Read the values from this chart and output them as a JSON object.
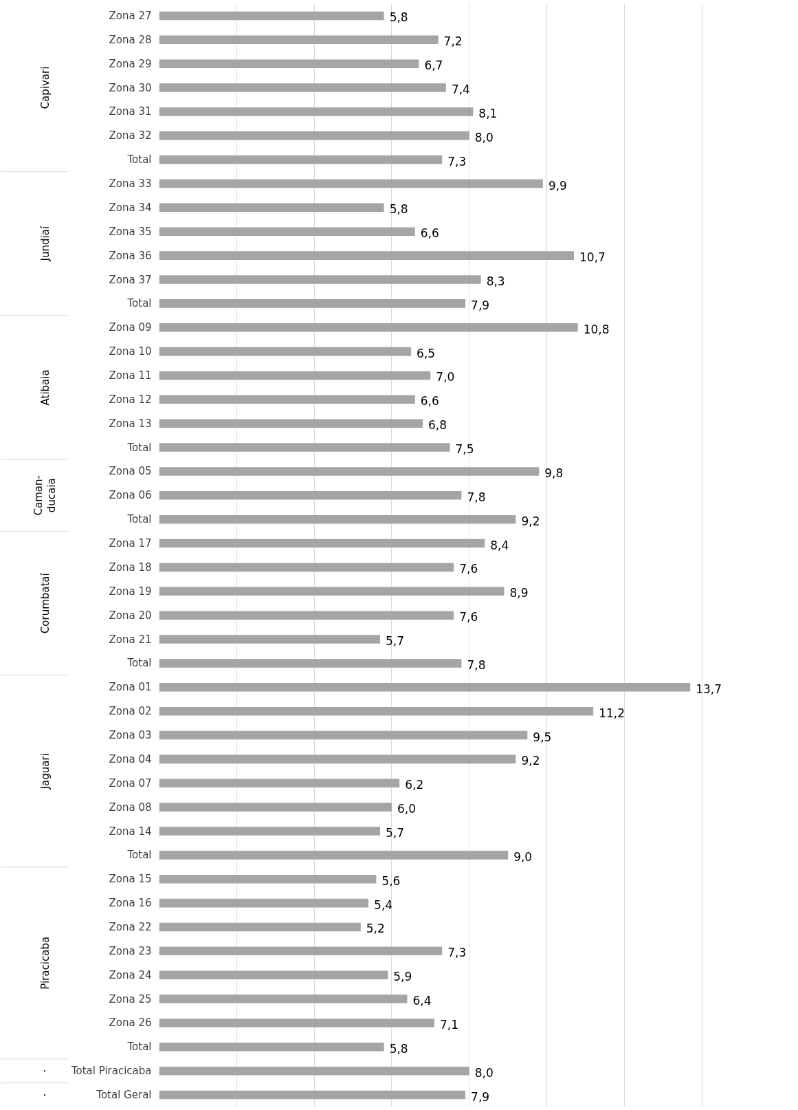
{
  "chart_data": {
    "type": "bar",
    "orientation": "horizontal",
    "categories": [
      "Zona 27",
      "Zona 28",
      "Zona 29",
      "Zona 30",
      "Zona 31",
      "Zona 32",
      "Total",
      "Zona 33",
      "Zona 34",
      "Zona 35",
      "Zona 36",
      "Zona 37",
      "Total",
      "Zona 09",
      "Zona 10",
      "Zona 11",
      "Zona 12",
      "Zona 13",
      "Total",
      "Zona 05",
      "Zona 06",
      "Total",
      "Zona 17",
      "Zona 18",
      "Zona 19",
      "Zona 20",
      "Zona 21",
      "Total",
      "Zona 01",
      "Zona 02",
      "Zona 03",
      "Zona 04",
      "Zona 07",
      "Zona 08",
      "Zona 14",
      "Total",
      "Zona 15",
      "Zona 16",
      "Zona 22",
      "Zona 23",
      "Zona 24",
      "Zona 25",
      "Zona 26",
      "Total",
      "Total Piracicaba",
      "Total Geral"
    ],
    "values": [
      5.8,
      7.2,
      6.7,
      7.4,
      8.1,
      8.0,
      7.3,
      9.9,
      5.8,
      6.6,
      10.7,
      8.3,
      7.9,
      10.8,
      6.5,
      7.0,
      6.6,
      6.8,
      7.5,
      9.8,
      7.8,
      9.2,
      8.4,
      7.6,
      8.9,
      7.6,
      5.7,
      7.8,
      13.7,
      11.2,
      9.5,
      9.2,
      6.2,
      6.0,
      5.7,
      9.0,
      5.6,
      5.4,
      5.2,
      7.3,
      5.9,
      6.4,
      7.1,
      5.8,
      8.0,
      7.9
    ],
    "value_labels": [
      "5,8",
      "7,2",
      "6,7",
      "7,4",
      "8,1",
      "8,0",
      "7,3",
      "9,9",
      "5,8",
      "6,6",
      "10,7",
      "8,3",
      "7,9",
      "10,8",
      "6,5",
      "7,0",
      "6,6",
      "6,8",
      "7,5",
      "9,8",
      "7,8",
      "9,2",
      "8,4",
      "7,6",
      "8,9",
      "7,6",
      "5,7",
      "7,8",
      "13,7",
      "11,2",
      "9,5",
      "9,2",
      "6,2",
      "6,0",
      "5,7",
      "9,0",
      "5,6",
      "5,4",
      "5,2",
      "7,3",
      "5,9",
      "6,4",
      "7,1",
      "5,8",
      "8,0",
      "7,9"
    ],
    "color": "#a5a5a5",
    "tick_labels": "y",
    "grid": "x",
    "annotations": [
      "Capivari",
      "Jundiaí",
      "Atibaia",
      "Caman-\nducaia",
      "Corumbataí",
      "Jaguari",
      "Piracicaba",
      "·",
      "·"
    ]
  }
}
